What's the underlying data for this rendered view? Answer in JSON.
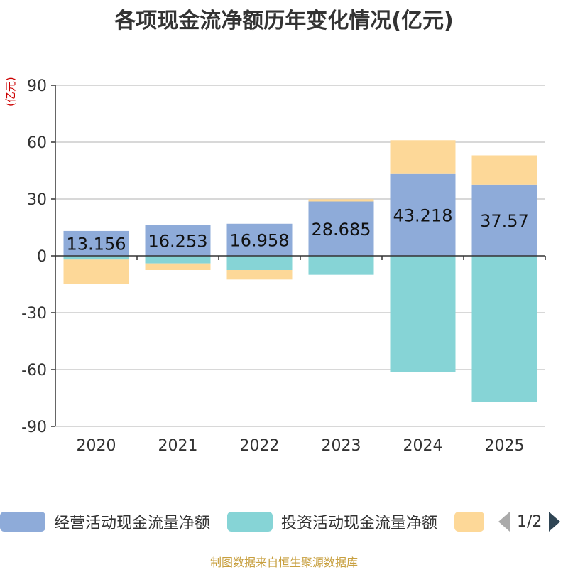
{
  "chart_data": {
    "type": "bar",
    "stacked": true,
    "title": "各项现金流净额历年变化情况(亿元)",
    "ylabel": "(亿元)",
    "categories": [
      "2020",
      "2021",
      "2022",
      "2023",
      "2024",
      "2025"
    ],
    "ylim": [
      -90,
      90
    ],
    "yticks": [
      90,
      60,
      30,
      0,
      -30,
      -60,
      -90
    ],
    "series": [
      {
        "name": "经营活动现金流量净额",
        "color": "#8eabd9",
        "values": [
          13.156,
          16.253,
          16.958,
          28.685,
          43.218,
          37.57
        ],
        "labels": [
          "13.156",
          "16.253",
          "16.958",
          "28.685",
          "43.218",
          "37.57"
        ]
      },
      {
        "name": "投资活动现金流量净额",
        "color": "#86d4d6",
        "values": [
          -2,
          -4,
          -7.5,
          -10,
          -61.5,
          -77
        ]
      },
      {
        "name": "",
        "color": "#fdd898",
        "values": [
          -13,
          -3.5,
          -5,
          1.2,
          17.8,
          15.5
        ]
      }
    ],
    "legend": {
      "position": "bottom",
      "page": "1/2"
    }
  },
  "source": "制图数据来自恒生聚源数据库"
}
